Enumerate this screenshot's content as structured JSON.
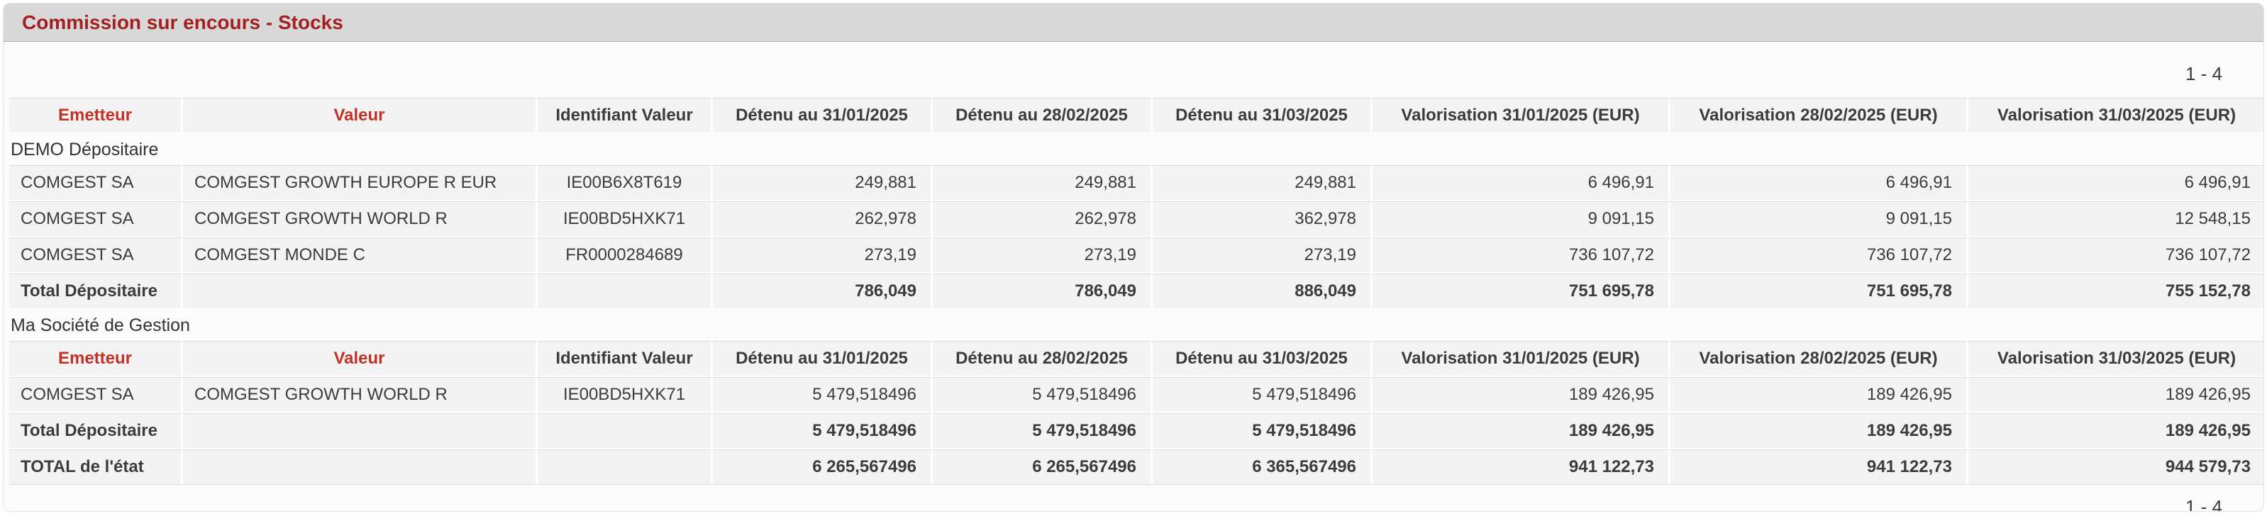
{
  "panel": {
    "title": "Commission sur encours - Stocks",
    "pagination_top": "1 - 4",
    "pagination_bottom": "1 - 4"
  },
  "colors": {
    "title_red": "#a32020",
    "header_red": "#c23127",
    "titlebar_bg": "#d8d8d8",
    "cell_bg": "#f3f3f3",
    "text": "#3c3c3c"
  },
  "table": {
    "columns": [
      "Emetteur",
      "Valeur",
      "Identifiant Valeur",
      "Détenu au 31/01/2025",
      "Détenu au 28/02/2025",
      "Détenu au 31/03/2025",
      "Valorisation 31/01/2025 (EUR)",
      "Valorisation 28/02/2025 (EUR)",
      "Valorisation 31/03/2025 (EUR)"
    ],
    "header_red_columns": [
      0,
      1
    ],
    "sections": [
      {
        "type": "header"
      },
      {
        "type": "group",
        "label": "DEMO Dépositaire"
      },
      {
        "type": "row",
        "cells": [
          "COMGEST SA",
          "COMGEST GROWTH EUROPE R EUR",
          "IE00B6X8T619",
          "249,881",
          "249,881",
          "249,881",
          "6 496,91",
          "6 496,91",
          "6 496,91"
        ]
      },
      {
        "type": "row",
        "cells": [
          "COMGEST SA",
          "COMGEST GROWTH WORLD R",
          "IE00BD5HXK71",
          "262,978",
          "262,978",
          "362,978",
          "9 091,15",
          "9 091,15",
          "12 548,15"
        ]
      },
      {
        "type": "row",
        "cells": [
          "COMGEST SA",
          "COMGEST MONDE C",
          "FR0000284689",
          "273,19",
          "273,19",
          "273,19",
          "736 107,72",
          "736 107,72",
          "736 107,72"
        ]
      },
      {
        "type": "total",
        "cells": [
          "Total Dépositaire",
          "",
          "",
          "786,049",
          "786,049",
          "886,049",
          "751 695,78",
          "751 695,78",
          "755 152,78"
        ]
      },
      {
        "type": "group",
        "label": "Ma Société de Gestion"
      },
      {
        "type": "header"
      },
      {
        "type": "row",
        "cells": [
          "COMGEST SA",
          "COMGEST GROWTH WORLD R",
          "IE00BD5HXK71",
          "5 479,518496",
          "5 479,518496",
          "5 479,518496",
          "189 426,95",
          "189 426,95",
          "189 426,95"
        ]
      },
      {
        "type": "total",
        "cells": [
          "Total Dépositaire",
          "",
          "",
          "5 479,518496",
          "5 479,518496",
          "5 479,518496",
          "189 426,95",
          "189 426,95",
          "189 426,95"
        ]
      },
      {
        "type": "grand_total",
        "cells": [
          "TOTAL de l'état",
          "",
          "",
          "6 265,567496",
          "6 265,567496",
          "6 365,567496",
          "941 122,73",
          "941 122,73",
          "944 579,73"
        ]
      }
    ]
  }
}
